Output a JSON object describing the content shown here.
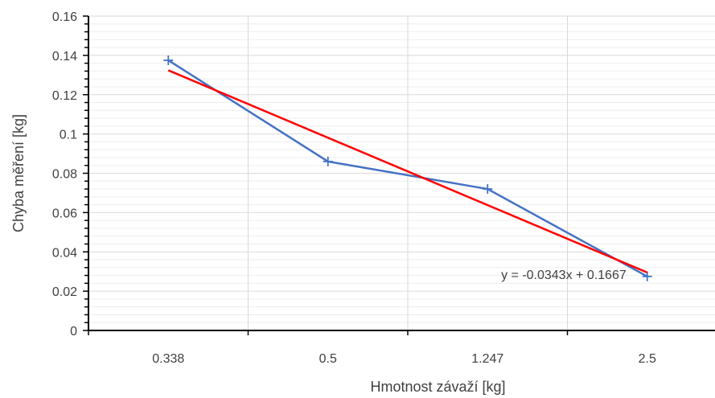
{
  "chart_data": {
    "type": "line",
    "categories": [
      "0.338",
      "0.5",
      "1.247",
      "2.5"
    ],
    "series": [
      {
        "values": [
          0.1375,
          0.086,
          0.072,
          0.0275
        ],
        "color": "#4472C4",
        "marker": "plus"
      }
    ],
    "trendline": {
      "type": "linear",
      "slope": -0.0343,
      "intercept": 0.1667,
      "equation": "y = -0.0343x + 0.1667",
      "color": "#FF0000"
    },
    "xlabel": "Hmotnost závaží [kg]",
    "ylabel": "Chyba měření [kg]",
    "ylim": [
      0,
      0.16
    ],
    "yticks": [
      "0",
      "0.02",
      "0.04",
      "0.06",
      "0.08",
      "0.1",
      "0.12",
      "0.14",
      "0.16"
    ],
    "grid": true,
    "legend": "none"
  }
}
